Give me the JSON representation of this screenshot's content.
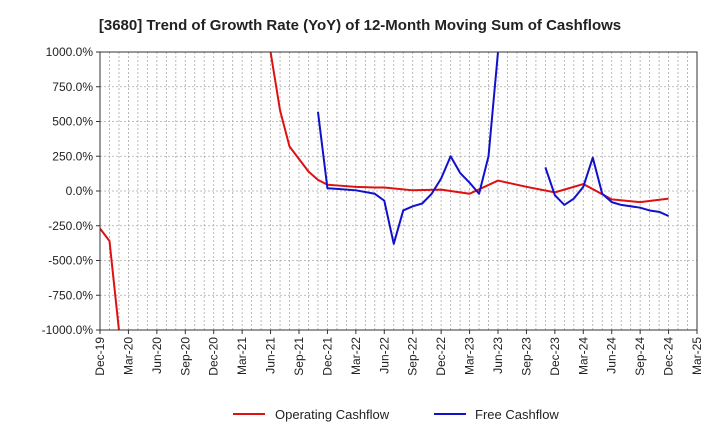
{
  "chart_data": {
    "type": "line",
    "title": "[3680]  Trend of Growth Rate (YoY) of 12-Month Moving Sum of Cashflows",
    "xlabel": "",
    "ylabel": "",
    "ylim": [
      -1000,
      1000
    ],
    "y_ticks": [
      "1000.0%",
      "750.0%",
      "500.0%",
      "250.0%",
      "0.0%",
      "-250.0%",
      "-500.0%",
      "-750.0%",
      "-1000.0%"
    ],
    "y_tick_values": [
      1000,
      750,
      500,
      250,
      0,
      -250,
      -500,
      -750,
      -1000
    ],
    "x_ticks": [
      "Dec-19",
      "Mar-20",
      "Jun-20",
      "Sep-20",
      "Dec-20",
      "Mar-21",
      "Jun-21",
      "Sep-21",
      "Dec-21",
      "Mar-22",
      "Jun-22",
      "Sep-22",
      "Dec-22",
      "Mar-23",
      "Jun-23",
      "Sep-23",
      "Dec-23",
      "Mar-24",
      "Jun-24",
      "Sep-24",
      "Dec-24",
      "Mar-25"
    ],
    "x_range": [
      "Dec-19",
      "Mar-25"
    ],
    "grid": true,
    "legend_position": "bottom",
    "series": [
      {
        "name": "Operating Cashflow",
        "color": "#dd1111",
        "segments": [
          [
            [
              "Dec-19",
              -270
            ],
            [
              "Jan-20",
              -360
            ],
            [
              "Feb-20",
              -1000
            ]
          ],
          [
            [
              "Jun-21",
              1000
            ],
            [
              "Jul-21",
              580
            ],
            [
              "Aug-21",
              320
            ],
            [
              "Sep-21",
              230
            ],
            [
              "Oct-21",
              140
            ],
            [
              "Nov-21",
              80
            ],
            [
              "Dec-21",
              45
            ],
            [
              "Jan-22",
              40
            ],
            [
              "Mar-22",
              30
            ],
            [
              "May-22",
              25
            ],
            [
              "Jun-22",
              25
            ],
            [
              "Sep-22",
              5
            ],
            [
              "Dec-22",
              10
            ],
            [
              "Mar-23",
              -20
            ],
            [
              "Jun-23",
              75
            ],
            [
              "Sep-23",
              30
            ],
            [
              "Dec-23",
              -10
            ],
            [
              "Mar-24",
              50
            ],
            [
              "Jun-24",
              -60
            ],
            [
              "Sep-24",
              -80
            ],
            [
              "Dec-24",
              -55
            ]
          ]
        ]
      },
      {
        "name": "Free Cashflow",
        "color": "#1111cc",
        "segments": [
          [
            [
              "Nov-21",
              570
            ],
            [
              "Dec-21",
              20
            ],
            [
              "Jan-22",
              15
            ],
            [
              "Mar-22",
              5
            ],
            [
              "May-22",
              -20
            ],
            [
              "Jun-22",
              -70
            ],
            [
              "Jul-22",
              -380
            ],
            [
              "Aug-22",
              -140
            ],
            [
              "Sep-22",
              -110
            ],
            [
              "Oct-22",
              -90
            ],
            [
              "Nov-22",
              -20
            ],
            [
              "Dec-22",
              90
            ],
            [
              "Jan-23",
              250
            ],
            [
              "Feb-23",
              130
            ],
            [
              "Mar-23",
              60
            ],
            [
              "Apr-23",
              -20
            ],
            [
              "May-23",
              250
            ],
            [
              "Jun-23",
              1000
            ]
          ],
          [
            [
              "Nov-23",
              170
            ],
            [
              "Dec-23",
              -30
            ],
            [
              "Jan-24",
              -100
            ],
            [
              "Feb-24",
              -55
            ],
            [
              "Mar-24",
              30
            ],
            [
              "Apr-24",
              240
            ],
            [
              "May-24",
              -20
            ],
            [
              "Jun-24",
              -80
            ],
            [
              "Jul-24",
              -100
            ],
            [
              "Sep-24",
              -120
            ],
            [
              "Oct-24",
              -140
            ],
            [
              "Nov-24",
              -150
            ],
            [
              "Dec-24",
              -180
            ]
          ]
        ]
      }
    ]
  }
}
